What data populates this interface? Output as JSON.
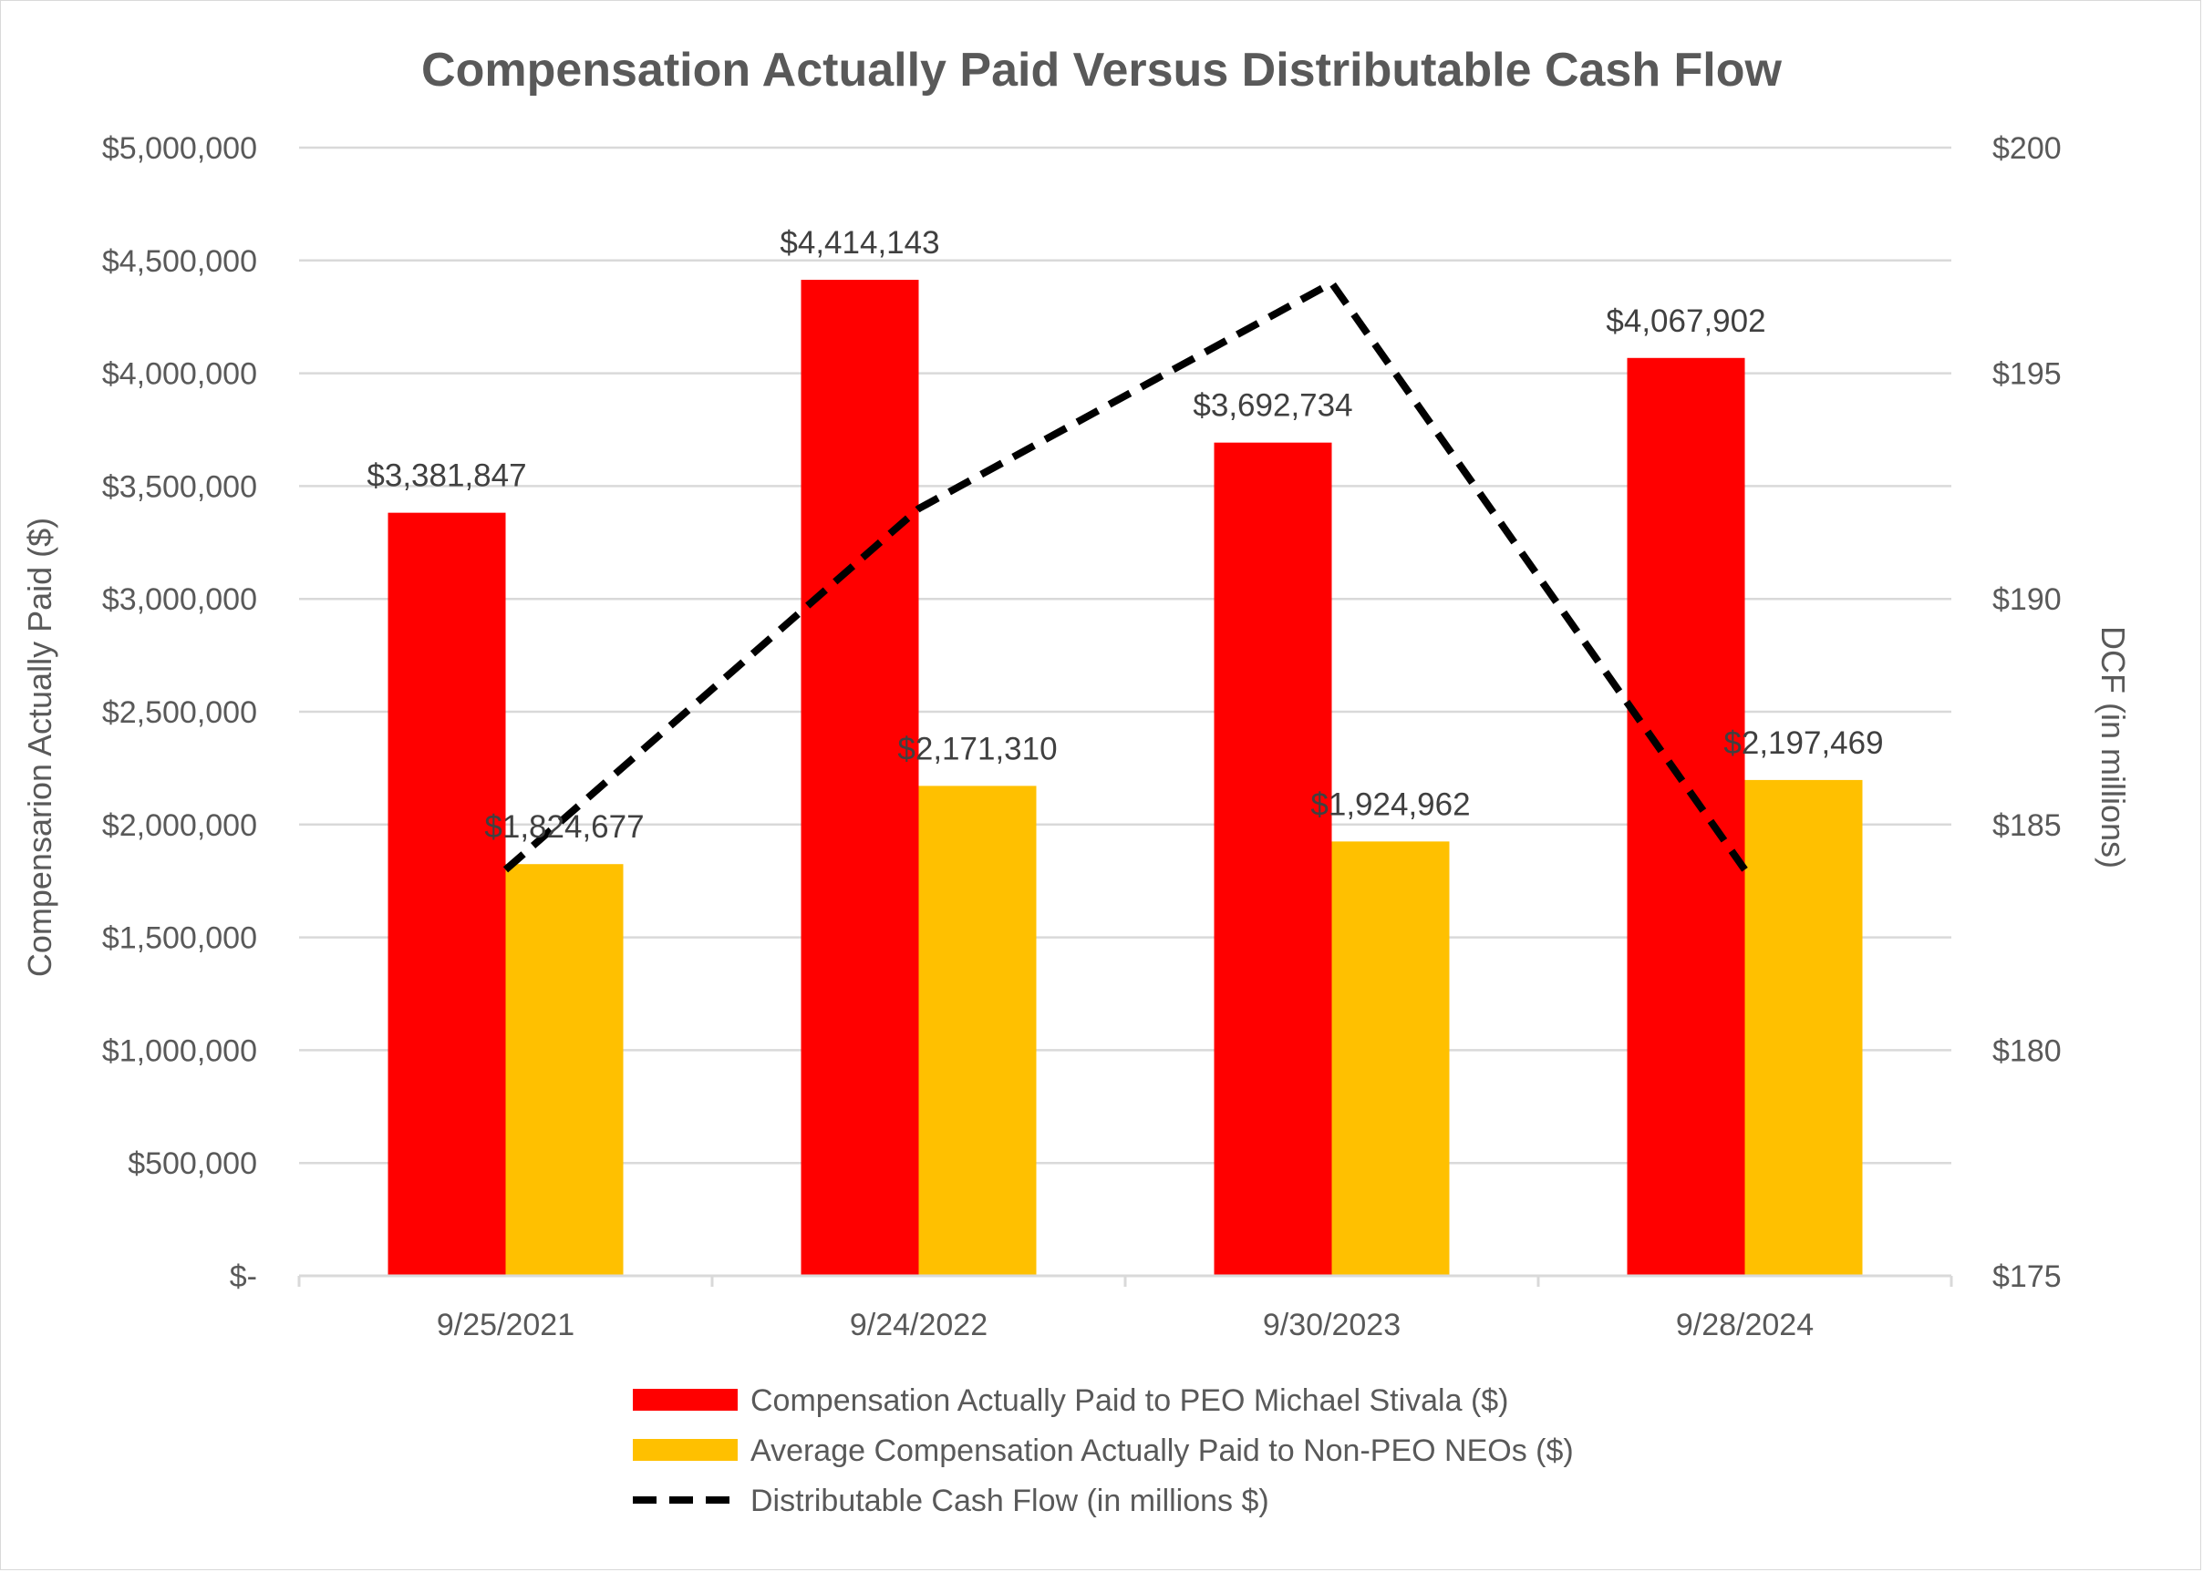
{
  "chart_data": {
    "type": "bar",
    "title": "Compensation Actually Paid Versus Distributable Cash Flow",
    "categories": [
      "9/25/2021",
      "9/24/2022",
      "9/30/2023",
      "9/28/2024"
    ],
    "series": [
      {
        "name": "Compensation Actually Paid to PEO Michael Stivala ($)",
        "kind": "bar",
        "axis": "left",
        "color": "#ff0000",
        "values": [
          3381847,
          4414143,
          3692734,
          4067902
        ],
        "labels": [
          "$3,381,847",
          "$4,414,143",
          "$3,692,734",
          "$4,067,902"
        ]
      },
      {
        "name": "Average Compensation Actually Paid to Non-PEO NEOs ($)",
        "kind": "bar",
        "axis": "left",
        "color": "#ffc000",
        "values": [
          1824677,
          2171310,
          1924962,
          2197469
        ],
        "labels": [
          "$1,824,677",
          "$2,171,310",
          "$1,924,962",
          "$2,197,469"
        ]
      },
      {
        "name": "Distributable Cash Flow (in millions $)",
        "kind": "line",
        "style": "dashed",
        "axis": "right",
        "color": "#000000",
        "values": [
          184,
          192,
          197,
          184
        ]
      }
    ],
    "ylabel": "Compensarion Actually Paid ($)",
    "ylim": [
      0,
      5000000
    ],
    "yticks": [
      0,
      500000,
      1000000,
      1500000,
      2000000,
      2500000,
      3000000,
      3500000,
      4000000,
      4500000,
      5000000
    ],
    "ytick_labels": [
      "$-",
      "$500,000",
      "$1,000,000",
      "$1,500,000",
      "$2,000,000",
      "$2,500,000",
      "$3,000,000",
      "$3,500,000",
      "$4,000,000",
      "$4,500,000",
      "$5,000,000"
    ],
    "y2label": "DCF (in millions)",
    "y2lim": [
      175,
      200
    ],
    "y2ticks": [
      175,
      180,
      185,
      190,
      195,
      200
    ],
    "y2tick_labels": [
      "$175",
      "$180",
      "$185",
      "$190",
      "$195",
      "$200"
    ],
    "grid": true,
    "legend_position": "bottom",
    "gridline_color": "#d9d9d9",
    "text_color": "#595959"
  }
}
